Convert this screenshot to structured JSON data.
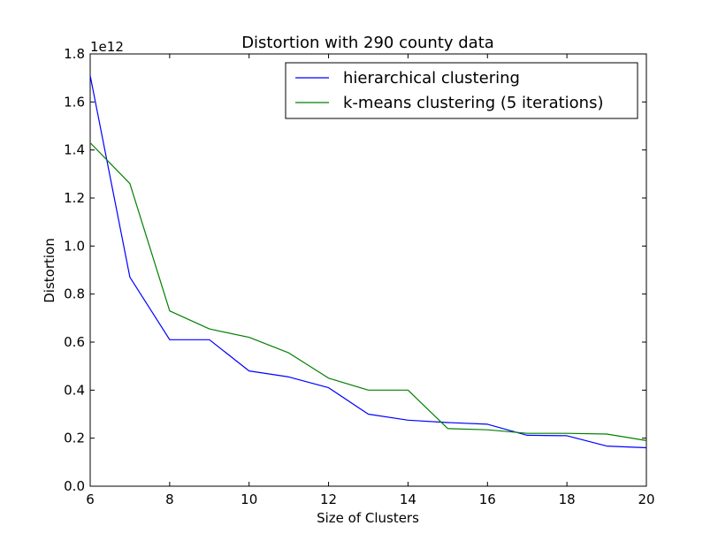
{
  "chart_data": {
    "type": "line",
    "title": "Distortion with 290 county data",
    "xlabel": "Size of Clusters",
    "ylabel": "Distortion",
    "y_scale_label": "1e12",
    "xlim": [
      6,
      20
    ],
    "ylim": [
      0.0,
      1.8
    ],
    "x_ticks": [
      6,
      8,
      10,
      12,
      14,
      16,
      18,
      20
    ],
    "y_ticks": [
      "0.0",
      "0.2",
      "0.4",
      "0.6",
      "0.8",
      "1.0",
      "1.2",
      "1.4",
      "1.6",
      "1.8"
    ],
    "grid": false,
    "legend_position": "top-right",
    "series": [
      {
        "name": "hierarchical clustering",
        "color": "#0000ff",
        "x": [
          6,
          7,
          8,
          9,
          10,
          11,
          12,
          13,
          14,
          15,
          16,
          17,
          18,
          19,
          20
        ],
        "y": [
          1.71,
          0.87,
          0.61,
          0.61,
          0.48,
          0.455,
          0.41,
          0.3,
          0.275,
          0.265,
          0.258,
          0.212,
          0.21,
          0.167,
          0.16
        ]
      },
      {
        "name": "k-means clustering (5 iterations)",
        "color": "#008000",
        "x": [
          6,
          7,
          8,
          9,
          10,
          11,
          12,
          13,
          14,
          15,
          16,
          17,
          18,
          19,
          20
        ],
        "y": [
          1.43,
          1.26,
          0.73,
          0.655,
          0.62,
          0.555,
          0.45,
          0.4,
          0.4,
          0.24,
          0.235,
          0.22,
          0.22,
          0.217,
          0.19
        ]
      }
    ]
  }
}
